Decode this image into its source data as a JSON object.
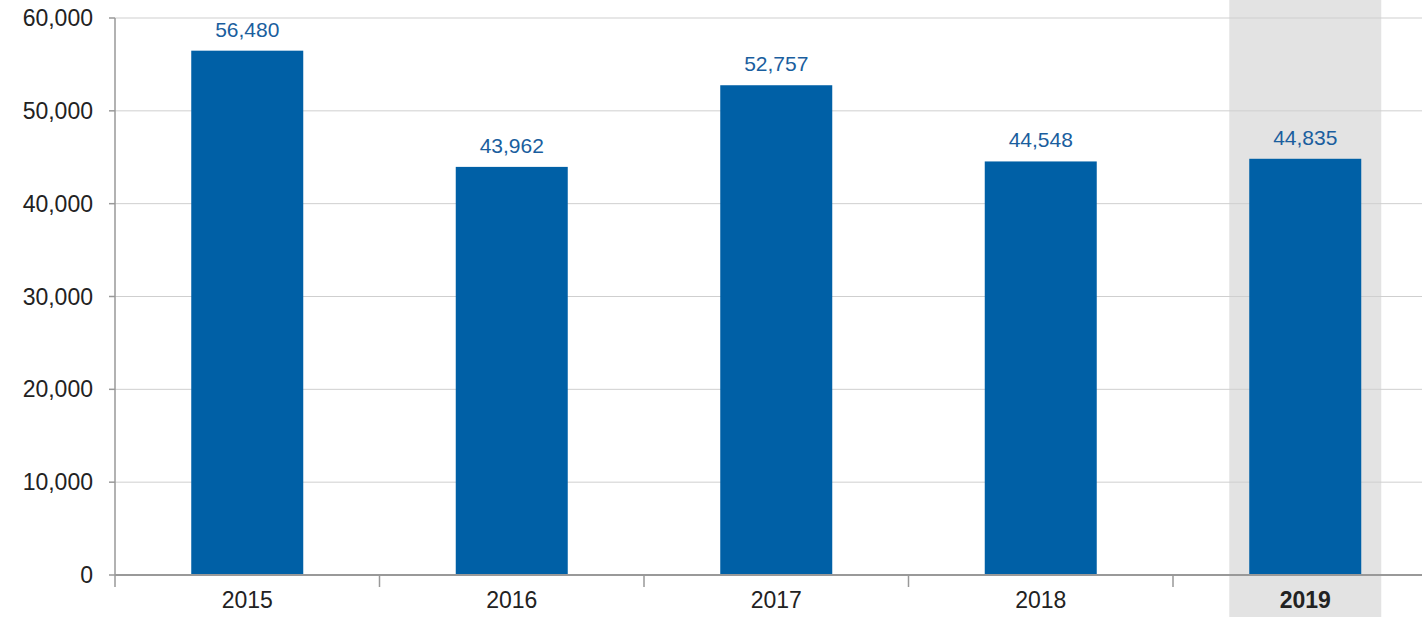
{
  "chart_data": {
    "type": "bar",
    "categories": [
      "2015",
      "2016",
      "2017",
      "2018",
      "2019"
    ],
    "values": [
      56480,
      43962,
      52757,
      44548,
      44835
    ],
    "value_labels": [
      "56,480",
      "43,962",
      "52,757",
      "44,548",
      "44,835"
    ],
    "color": "#0060a6",
    "ylim": [
      0,
      60000
    ],
    "yticks": [
      0,
      {
        "value": 10000,
        "label": "10,000"
      },
      {
        "value": 20000,
        "label": "20,000"
      },
      {
        "value": 30000,
        "label": "30,000"
      },
      {
        "value": 40000,
        "label": "40,000"
      },
      {
        "value": 50000,
        "label": "50,000"
      },
      {
        "value": 60000,
        "label": "60,000"
      }
    ],
    "grid": true,
    "data_labels": true
  }
}
